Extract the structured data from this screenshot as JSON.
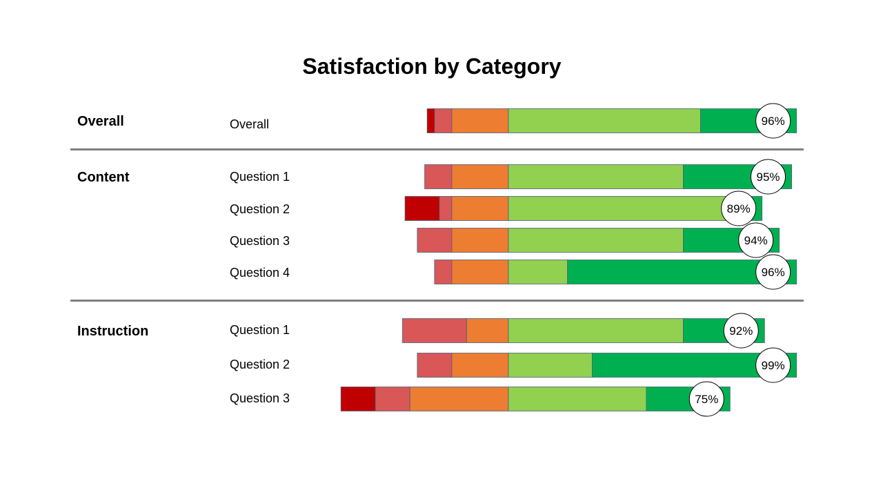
{
  "chart_data": {
    "type": "bar",
    "subtype": "diverging-stacked-bar",
    "title": "Satisfaction by Category",
    "segment_colors": [
      "#C00000",
      "#D95757",
      "#ED7D31",
      "#92D050",
      "#00B050"
    ],
    "circle_color": "#ffffff",
    "groups": [
      {
        "label": "Overall",
        "rows": [
          {
            "label": "Overall",
            "values": [
              3,
              7,
              23,
              78,
              39
            ],
            "satisfaction": "96%"
          }
        ]
      },
      {
        "label": "Content",
        "rows": [
          {
            "label": "Question 1",
            "values": [
              0,
              11,
              23,
              71,
              44
            ],
            "satisfaction": "95%"
          },
          {
            "label": "Question 2",
            "values": [
              14,
              5,
              23,
              90,
              13
            ],
            "satisfaction": "89%"
          },
          {
            "label": "Question 3",
            "values": [
              0,
              14,
              23,
              71,
              39
            ],
            "satisfaction": "94%"
          },
          {
            "label": "Question 4",
            "values": [
              0,
              7,
              23,
              24,
              93
            ],
            "satisfaction": "96%"
          }
        ]
      },
      {
        "label": "Instruction",
        "rows": [
          {
            "label": "Question 1",
            "values": [
              0,
              26,
              17,
              71,
              33
            ],
            "satisfaction": "92%"
          },
          {
            "label": "Question 2",
            "values": [
              0,
              14,
              23,
              34,
              83
            ],
            "satisfaction": "99%"
          },
          {
            "label": "Question 3",
            "values": [
              14,
              14,
              40,
              56,
              34
            ],
            "satisfaction": "75%"
          }
        ]
      }
    ]
  }
}
